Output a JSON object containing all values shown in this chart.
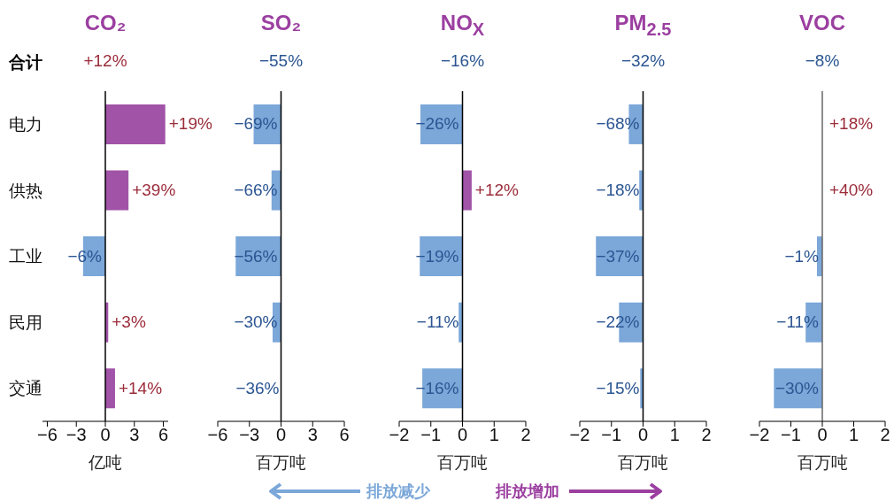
{
  "chart_data": [
    {
      "type": "bar",
      "orientation": "horizontal",
      "title": "CO₂",
      "xlabel": "亿吨",
      "categories": [
        "电力",
        "供热",
        "工业",
        "民用",
        "交通"
      ],
      "values": [
        6.2,
        2.4,
        -2.3,
        0.3,
        1.0
      ],
      "colors": [
        "#a153a8",
        "#a153a8",
        "#7ba7d9",
        "#a153a8",
        "#a153a8"
      ],
      "xlim": [
        -6.5,
        6.5
      ],
      "xticks": [
        {
          "value": -6,
          "label": "−6"
        },
        {
          "value": -3,
          "label": "−3"
        },
        0,
        3,
        6
      ],
      "ref_lines": [
        {
          "axis": "x",
          "value": 0,
          "color": "#000000"
        }
      ],
      "annotations": [
        "合计",
        "+12%",
        {
          "text": "+19%",
          "x": 6.2,
          "y": "电力"
        },
        {
          "text": "+39%",
          "x": 2.4,
          "y": "供热"
        },
        {
          "text": "−6%",
          "x": -2.3,
          "y": "工业"
        },
        {
          "text": "+3%",
          "x": 0.3,
          "y": "民用"
        },
        {
          "text": "+14%",
          "x": 1.0,
          "y": "交通"
        }
      ]
    },
    {
      "type": "bar",
      "orientation": "horizontal",
      "title": "SO₂",
      "xlabel": "百万吨",
      "categories": [
        "电力",
        "供热",
        "工业",
        "民用",
        "交通"
      ],
      "values": [
        -2.6,
        -0.9,
        -4.3,
        -0.8,
        0
      ],
      "colors": [
        "#7ba7d9",
        "#7ba7d9",
        "#7ba7d9",
        "#7ba7d9",
        "#7ba7d9"
      ],
      "xlim": [
        -6,
        6
      ],
      "xticks": [
        {
          "value": -6,
          "label": "−6"
        },
        {
          "value": -3,
          "label": "−3"
        },
        0,
        3,
        6
      ],
      "ref_lines": [
        {
          "axis": "x",
          "value": 0,
          "color": "#000000"
        }
      ],
      "tick_labels": "x",
      "annotations": [
        "−55%",
        {
          "text": "−69%",
          "x": -2.6,
          "y": "电力"
        },
        {
          "text": "−66%",
          "x": -0.9,
          "y": "供热"
        },
        {
          "text": "−56%",
          "x": -4.3,
          "y": "工业"
        },
        {
          "text": "−30%",
          "x": -0.8,
          "y": "民用"
        },
        {
          "text": "−36%",
          "x": 0,
          "y": "交通"
        }
      ]
    },
    {
      "type": "bar",
      "orientation": "horizontal",
      "title": "NO$_{X}$",
      "xlabel": "百万吨",
      "categories": [
        "电力",
        "供热",
        "工业",
        "民用",
        "交通"
      ],
      "values": [
        -1.33,
        0.29,
        -1.35,
        -0.12,
        -1.27
      ],
      "colors": [
        "#7ba7d9",
        "#a153a8",
        "#7ba7d9",
        "#7ba7d9",
        "#7ba7d9"
      ],
      "xlim": [
        -2,
        2
      ],
      "xticks": [
        {
          "value": -2,
          "label": "−2"
        },
        {
          "value": -1,
          "label": "−1"
        },
        0,
        1,
        2
      ],
      "ref_lines": [
        {
          "axis": "x",
          "value": 0,
          "color": "#000000"
        }
      ],
      "tick_labels": "x",
      "annotations": [
        "−16%",
        "排放减少",
        "排放增加",
        {
          "text": "−26%",
          "x": -1.33,
          "y": "电力"
        },
        {
          "text": "+12%",
          "x": 0.29,
          "y": "供热"
        },
        {
          "text": "−19%",
          "x": -1.35,
          "y": "工业"
        },
        {
          "text": "−11%",
          "x": -0.12,
          "y": "民用"
        },
        {
          "text": "−16%",
          "x": -1.27,
          "y": "交通"
        }
      ]
    },
    {
      "type": "bar",
      "orientation": "horizontal",
      "title": "PM$_{2.5}$",
      "xlabel": "百万吨",
      "categories": [
        "电力",
        "供热",
        "工业",
        "民用",
        "交通"
      ],
      "values": [
        -0.45,
        -0.12,
        -1.49,
        -0.76,
        -0.09
      ],
      "colors": [
        "#7ba7d9",
        "#7ba7d9",
        "#7ba7d9",
        "#7ba7d9",
        "#7ba7d9"
      ],
      "xlim": [
        -2,
        2
      ],
      "xticks": [
        {
          "value": -2,
          "label": "−2"
        },
        {
          "value": -1,
          "label": "−1"
        },
        0,
        1,
        2
      ],
      "ref_lines": [
        {
          "axis": "x",
          "value": 0,
          "color": "#000000"
        }
      ],
      "tick_labels": "x",
      "annotations": [
        "−32%",
        {
          "text": "−68%",
          "x": -0.45,
          "y": "电力"
        },
        {
          "text": "−18%",
          "x": -0.12,
          "y": "供热"
        },
        {
          "text": "−37%",
          "x": -1.49,
          "y": "工业"
        },
        {
          "text": "−22%",
          "x": -0.76,
          "y": "民用"
        },
        {
          "text": "−15%",
          "x": -0.09,
          "y": "交通"
        }
      ]
    },
    {
      "type": "bar",
      "orientation": "horizontal",
      "title": "VOC",
      "xlabel": "百万吨",
      "categories": [
        "电力",
        "供热",
        "工业",
        "民用",
        "交通"
      ],
      "values": [
        0,
        0,
        -0.17,
        -0.53,
        -1.54
      ],
      "colors": [
        "#a153a8",
        "#a153a8",
        "#7ba7d9",
        "#7ba7d9",
        "#7ba7d9"
      ],
      "xlim": [
        -2,
        2
      ],
      "xticks": [
        {
          "value": -2,
          "label": "−2"
        },
        {
          "value": -1,
          "label": "−1"
        },
        0,
        1,
        2
      ],
      "ref_lines": [
        {
          "axis": "x",
          "value": 0,
          "color": "#666666"
        }
      ],
      "tick_labels": "x",
      "annotations": [
        "−8%",
        {
          "text": "+18%",
          "x": 0,
          "y": "电力"
        },
        {
          "text": "+40%",
          "x": 0,
          "y": "供热"
        },
        {
          "text": "−1%",
          "x": -0.17,
          "y": "工业"
        },
        {
          "text": "−11%",
          "x": -0.53,
          "y": "民用"
        },
        {
          "text": "−30%",
          "x": -1.54,
          "y": "交通"
        }
      ]
    }
  ]
}
